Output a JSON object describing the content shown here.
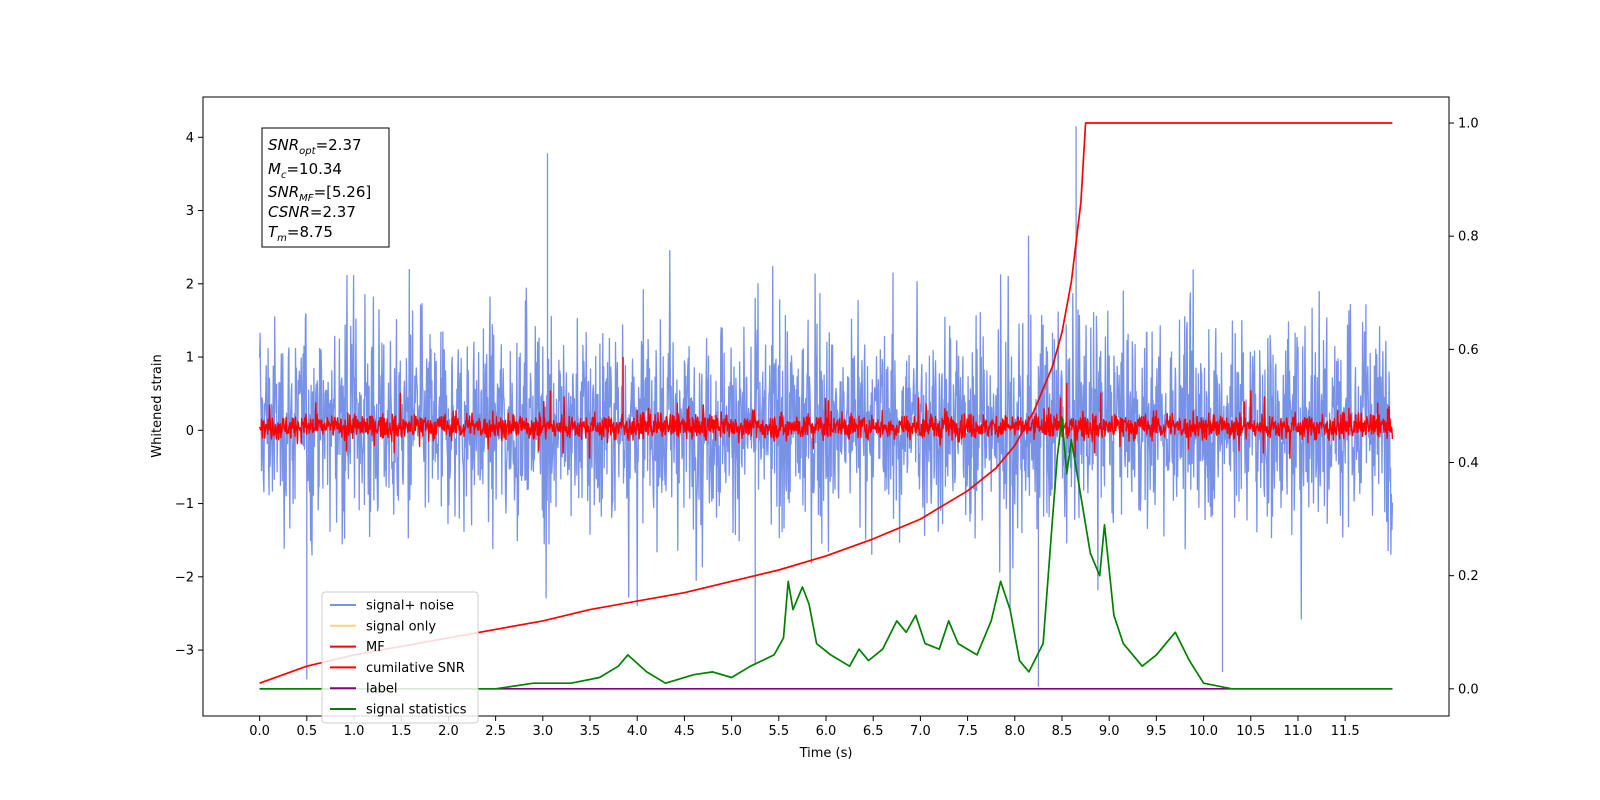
{
  "chart_data": {
    "type": "line",
    "xlabel": "Time (s)",
    "ylabel": "Whitened strain",
    "xlim": [
      -0.6,
      12.6
    ],
    "ylim": [
      -3.9,
      4.55
    ],
    "y2lim": [
      -0.048,
      1.046
    ],
    "x_ticks": [
      0.0,
      0.5,
      1.0,
      1.5,
      2.0,
      2.5,
      3.0,
      3.5,
      4.0,
      4.5,
      5.0,
      5.5,
      6.0,
      6.5,
      7.0,
      7.5,
      8.0,
      8.5,
      9.0,
      9.5,
      10.0,
      10.5,
      11.0,
      11.5
    ],
    "x_tick_labels": [
      "0.0",
      "0.5",
      "1.0",
      "1.5",
      "2.0",
      "2.5",
      "3.0",
      "3.5",
      "4.0",
      "4.5",
      "5.0",
      "5.5",
      "6.0",
      "6.5",
      "7.0",
      "7.5",
      "8.0",
      "8.5",
      "9.0",
      "9.5",
      "10.0",
      "10.5",
      "11.0",
      "11.5"
    ],
    "y_ticks": [
      -3,
      -2,
      -1,
      0,
      1,
      2,
      3,
      4
    ],
    "y_tick_labels": [
      "−3",
      "−2",
      "−1",
      "0",
      "1",
      "2",
      "3",
      "4"
    ],
    "y2_ticks": [
      0.0,
      0.2,
      0.4,
      0.6,
      0.8,
      1.0
    ],
    "y2_tick_labels": [
      "0.0",
      "0.2",
      "0.4",
      "0.6",
      "0.8",
      "1.0"
    ],
    "grid": false,
    "legend_position": "lower-left",
    "info_box": {
      "snr_opt": {
        "main": "SNR",
        "sub": "opt",
        "value": "=2.37"
      },
      "mc": {
        "main": "M",
        "sub": "c",
        "value": "=10.34"
      },
      "snr_mf": {
        "main": "SNR",
        "sub": "MF",
        "value": "=[5.26]"
      },
      "csnr": {
        "main": "CSNR",
        "value": "=2.37"
      },
      "tm": {
        "main": "T",
        "sub": "m",
        "value": "=8.75"
      }
    },
    "series": [
      {
        "name": "signal+ noise",
        "color": "#7892e8",
        "axis": "left",
        "description_kind": "noise",
        "x_range": [
          0.0,
          12.0
        ],
        "envelope": [
          -2.2,
          2.6
        ],
        "peaks": [
          [
            0.5,
            -3.4
          ],
          [
            3.05,
            3.78
          ],
          [
            5.25,
            -3.2
          ],
          [
            8.25,
            -3.5
          ],
          [
            8.65,
            4.15
          ],
          [
            10.2,
            -3.3
          ]
        ]
      },
      {
        "name": "signal only",
        "color": "#ffd27f",
        "axis": "left",
        "values_note": "flat"
      },
      {
        "name": "MF",
        "color": "#ff0000",
        "axis": "left",
        "x_range": [
          0.0,
          12.0
        ],
        "envelope": [
          -0.28,
          0.62
        ],
        "peaks": [
          [
            3.85,
            1.0
          ],
          [
            8.55,
            0.65
          ]
        ]
      },
      {
        "name": "cumilative SNR",
        "color": "#ff0000",
        "axis": "right",
        "x": [
          0.0,
          0.5,
          1.0,
          1.5,
          2.0,
          2.5,
          3.0,
          3.5,
          4.0,
          4.5,
          5.0,
          5.5,
          6.0,
          6.5,
          7.0,
          7.5,
          7.8,
          8.0,
          8.2,
          8.4,
          8.5,
          8.6,
          8.7,
          8.75,
          12.0
        ],
        "values": [
          0.01,
          0.04,
          0.06,
          0.075,
          0.09,
          0.105,
          0.12,
          0.14,
          0.155,
          0.17,
          0.19,
          0.21,
          0.235,
          0.265,
          0.3,
          0.35,
          0.39,
          0.43,
          0.49,
          0.57,
          0.63,
          0.72,
          0.86,
          1.0,
          1.0
        ]
      },
      {
        "name": "label",
        "color": "#800080",
        "axis": "right",
        "x": [
          0.0,
          12.0
        ],
        "values": [
          0.0,
          0.0
        ]
      },
      {
        "name": "signal statistics",
        "color": "#008000",
        "axis": "right",
        "x": [
          0.0,
          2.5,
          2.9,
          3.3,
          3.6,
          3.8,
          3.9,
          4.1,
          4.3,
          4.6,
          4.8,
          5.0,
          5.2,
          5.45,
          5.55,
          5.6,
          5.65,
          5.75,
          5.82,
          5.9,
          6.05,
          6.25,
          6.35,
          6.45,
          6.6,
          6.75,
          6.85,
          6.95,
          7.05,
          7.2,
          7.3,
          7.4,
          7.6,
          7.75,
          7.85,
          7.95,
          8.05,
          8.15,
          8.3,
          8.4,
          8.45,
          8.5,
          8.55,
          8.6,
          8.7,
          8.8,
          8.9,
          8.95,
          9.05,
          9.15,
          9.35,
          9.5,
          9.6,
          9.7,
          9.85,
          10.0,
          10.3,
          10.8,
          11.5,
          12.0
        ],
        "values": [
          0.0,
          0.0,
          0.01,
          0.01,
          0.02,
          0.04,
          0.06,
          0.03,
          0.01,
          0.025,
          0.03,
          0.02,
          0.04,
          0.06,
          0.09,
          0.19,
          0.14,
          0.18,
          0.15,
          0.08,
          0.06,
          0.04,
          0.07,
          0.05,
          0.07,
          0.12,
          0.1,
          0.13,
          0.08,
          0.07,
          0.12,
          0.08,
          0.06,
          0.12,
          0.19,
          0.14,
          0.05,
          0.03,
          0.08,
          0.3,
          0.41,
          0.48,
          0.38,
          0.44,
          0.34,
          0.24,
          0.2,
          0.29,
          0.13,
          0.08,
          0.04,
          0.06,
          0.08,
          0.1,
          0.05,
          0.01,
          0.0,
          0.0,
          0.0,
          0.0
        ]
      }
    ]
  }
}
